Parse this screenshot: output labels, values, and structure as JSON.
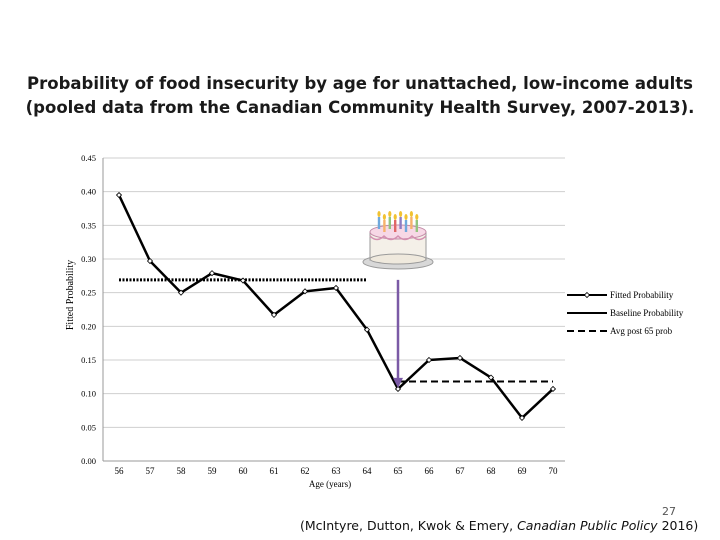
{
  "slide": {
    "title_line1": "Probability of food insecurity by age for unattached, low-income adults",
    "title_line2": "(pooled data from the Canadian Community Health Survey, 2007-2013).",
    "page_number": "27",
    "citation_prefix": "(McIntyre, Dutton, Kwok & Emery, ",
    "citation_journal": "Canadian Public Policy",
    "citation_suffix": " 2016)"
  },
  "chart_data": {
    "type": "line",
    "xlabel": "Age (years)",
    "ylabel": "Fitted Probability",
    "categories": [
      "56",
      "57",
      "58",
      "59",
      "60",
      "61",
      "62",
      "63",
      "64",
      "65",
      "66",
      "67",
      "68",
      "69",
      "70"
    ],
    "ylim": [
      0,
      0.45
    ],
    "yticks": [
      "0.00",
      "0.05",
      "0.10",
      "0.15",
      "0.20",
      "0.25",
      "0.30",
      "0.35",
      "0.40",
      "0.45"
    ],
    "grid": "horizontal",
    "legend_position": "right",
    "series": [
      {
        "name": "Fitted Probability",
        "style": "solid-with-markers",
        "color": "#000000",
        "values": [
          0.395,
          0.297,
          0.25,
          0.279,
          0.268,
          0.217,
          0.252,
          0.257,
          0.195,
          0.107,
          0.15,
          0.153,
          0.124,
          0.064,
          0.107
        ]
      },
      {
        "name": "Baseline Probability",
        "style": "dotted",
        "color": "#000000",
        "x_range": [
          "56",
          "64"
        ],
        "value": 0.269
      },
      {
        "name": "Avg post 65 prob",
        "style": "dashed",
        "color": "#000000",
        "x_range": [
          "65",
          "70"
        ],
        "value": 0.118
      }
    ],
    "annotation": {
      "type": "arrow",
      "color": "#7b5aa6",
      "x": "65",
      "from_value": 0.269,
      "to_value": 0.11,
      "icon": "birthday-cake-icon"
    }
  }
}
